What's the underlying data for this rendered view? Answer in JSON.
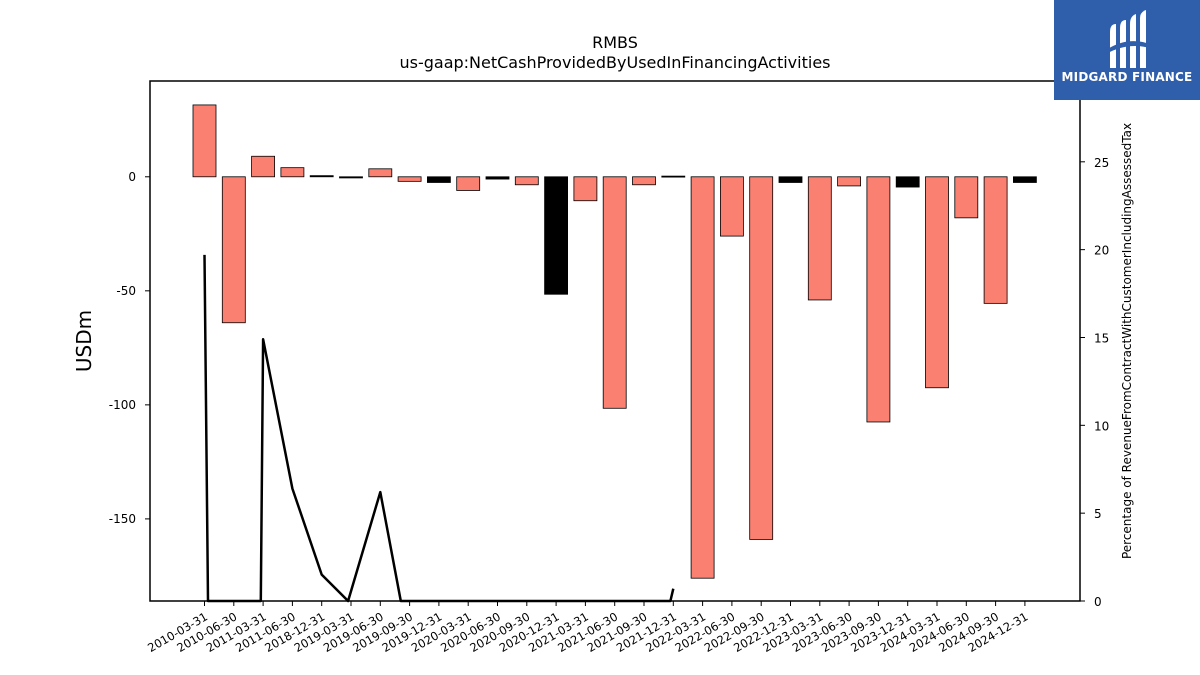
{
  "chart_data": {
    "type": "bar",
    "title": "RMBS",
    "subtitle": "us-gaap:NetCashProvidedByUsedInFinancingActivities",
    "ylabel": "USDm",
    "y2label": "Percentage of RevenueFromContractWithCustomerIncludingAssessedTax",
    "ylim": [
      -186,
      42
    ],
    "y2lim": [
      0,
      29.6
    ],
    "yticks": [
      0,
      -50,
      -100,
      -150
    ],
    "y2ticks": [
      0,
      5,
      10,
      15,
      20,
      25
    ],
    "grid": false,
    "categories": [
      "2010-03-31",
      "2010-06-30",
      "2011-03-31",
      "2011-06-30",
      "2018-12-31",
      "2019-03-31",
      "2019-06-30",
      "2019-09-30",
      "2019-12-31",
      "2020-03-31",
      "2020-06-30",
      "2020-09-30",
      "2020-12-31",
      "2021-03-31",
      "2021-06-30",
      "2021-09-30",
      "2021-12-31",
      "2022-03-31",
      "2022-06-30",
      "2022-09-30",
      "2022-12-31",
      "2023-03-31",
      "2023-06-30",
      "2023-09-30",
      "2023-12-31",
      "2024-03-31",
      "2024-06-30",
      "2024-09-30",
      "2024-12-31"
    ],
    "series": [
      {
        "values": [
          31.5,
          -64,
          9,
          4,
          0.5,
          -0.5,
          3.5,
          -2,
          -2.5,
          -6,
          -1,
          -3.5,
          -51.5,
          -10.5,
          -101.5,
          -3.5,
          0.3,
          -176,
          -26,
          -159,
          -2.5,
          -54,
          -4,
          -107.5,
          -4.5,
          -92.5,
          -18,
          -55.5,
          -2.5
        ],
        "colors": [
          "#fa8072",
          "#fa8072",
          "#fa8072",
          "#fa8072",
          "#000000",
          "#000000",
          "#fa8072",
          "#fa8072",
          "#000000",
          "#fa8072",
          "#000000",
          "#fa8072",
          "#000000",
          "#fa8072",
          "#fa8072",
          "#fa8072",
          "#000000",
          "#fa8072",
          "#fa8072",
          "#fa8072",
          "#000000",
          "#fa8072",
          "#fa8072",
          "#fa8072",
          "#000000",
          "#fa8072",
          "#fa8072",
          "#fa8072",
          "#000000"
        ]
      },
      {
        "type": "line",
        "axis": "right",
        "color": "#000000",
        "points": [
          [
            0,
            19.7
          ],
          [
            0.12,
            0
          ],
          [
            1.92,
            0
          ],
          [
            2.0,
            14.9
          ],
          [
            3.0,
            6.4
          ],
          [
            4.0,
            1.5
          ],
          [
            4.9,
            0
          ],
          [
            6.0,
            6.2
          ],
          [
            6.7,
            0
          ],
          [
            15.9,
            0
          ],
          [
            16.0,
            0.7
          ]
        ]
      }
    ]
  },
  "logo": {
    "text": "MIDGARD FINANCE",
    "bg_color": "#2f5eaa"
  }
}
